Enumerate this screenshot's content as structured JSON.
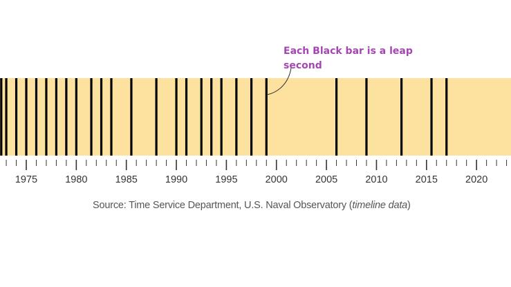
{
  "chart_data": {
    "type": "timeline",
    "annotation": "Each Black bar is a leap second",
    "source_prefix": "Source: Time Service Department, U.S. Naval Observatory (",
    "source_link": "timeline data",
    "source_suffix": ")",
    "xlim": [
      1972.3,
      2024.7
    ],
    "major_ticks": [
      1975,
      1980,
      1985,
      1990,
      1995,
      2000,
      2005,
      2010,
      2015,
      2020
    ],
    "minor_tick_step": 1,
    "leap_seconds": [
      1972.5,
      1973.0,
      1974.0,
      1975.0,
      1976.0,
      1977.0,
      1978.0,
      1979.0,
      1980.0,
      1981.5,
      1982.5,
      1983.5,
      1985.5,
      1988.0,
      1990.0,
      1991.0,
      1992.5,
      1993.5,
      1994.5,
      1996.0,
      1997.5,
      1999.0,
      2006.0,
      2009.0,
      2012.5,
      2015.5,
      2017.0
    ],
    "colors": {
      "band": "#fde29f",
      "bar": "#000000",
      "annotation": "#a646b4",
      "tick": "#333333"
    }
  }
}
